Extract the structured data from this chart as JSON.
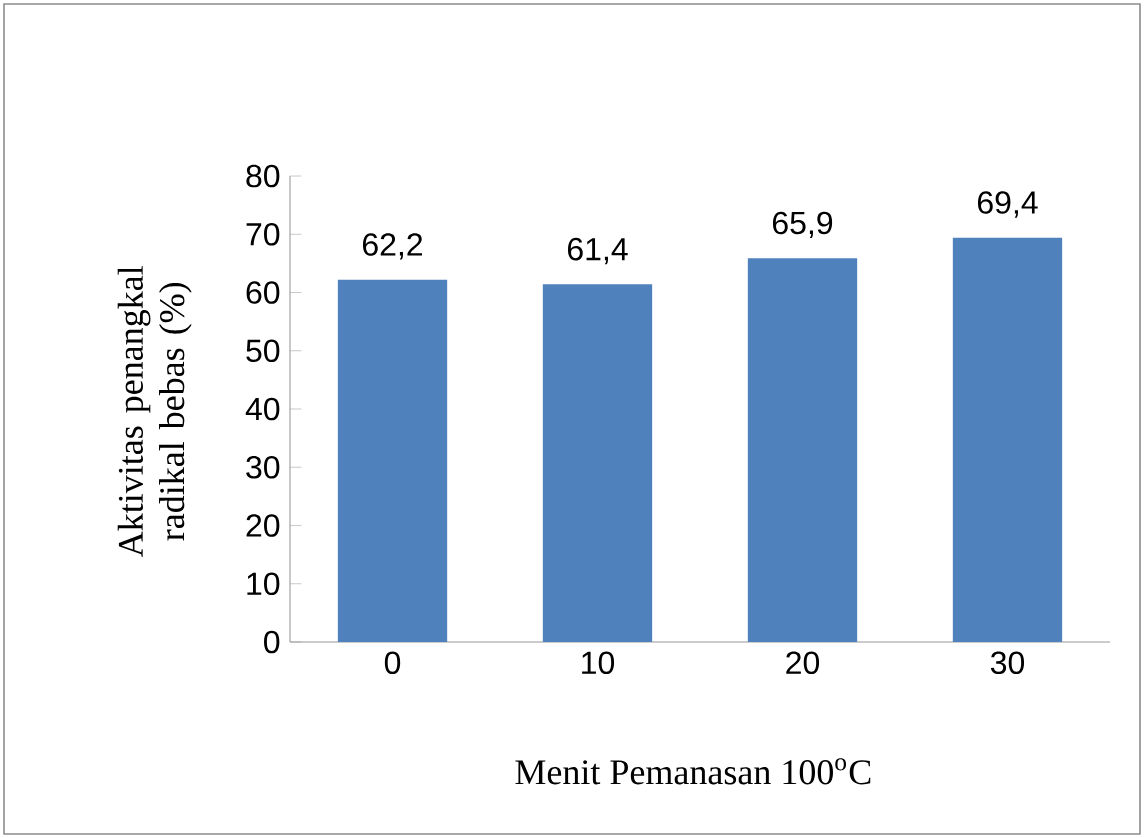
{
  "chart_data": {
    "type": "bar",
    "xlabel": "Menit Pemanasan 100$^{o}$C",
    "ylabel": "Aktivitas penangkal radikal bebas (%)",
    "categories": [
      "0",
      "10",
      "20",
      "30"
    ],
    "values": [
      62.2,
      61.4,
      65.9,
      69.4
    ],
    "value_labels": [
      "62,2",
      "61,4",
      "65,9",
      "69,4"
    ],
    "color": "#4f81bd",
    "ylim": [
      0,
      80
    ],
    "yticks": [
      0,
      10,
      20,
      30,
      40,
      50,
      60,
      70,
      80
    ],
    "grid": false
  }
}
